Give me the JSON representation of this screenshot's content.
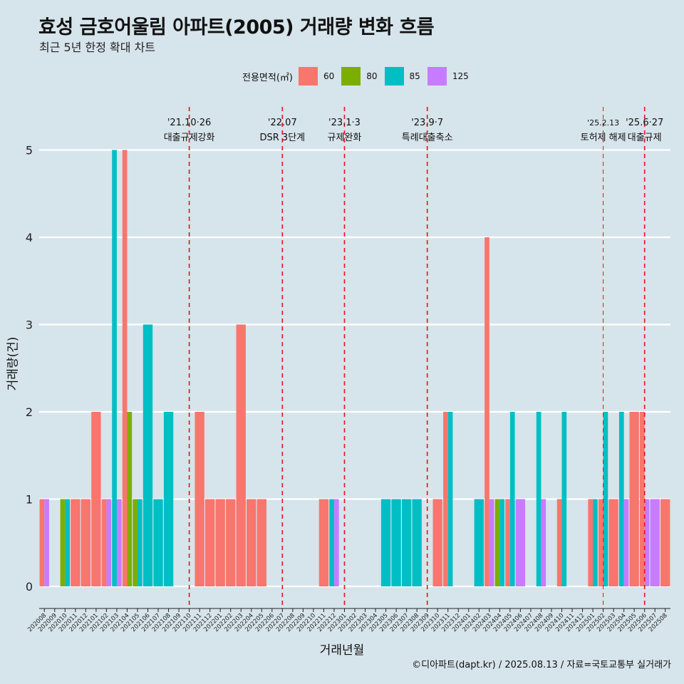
{
  "header": {
    "title": "효성 금호어울림 아파트(2005) 거래량 변화 흐름",
    "subtitle": "최근 5년 한정 확대 차트"
  },
  "legend": {
    "title": "전용면적(㎡)",
    "items": [
      {
        "label": "60",
        "color": "#f8766d"
      },
      {
        "label": "80",
        "color": "#7cae00"
      },
      {
        "label": "85",
        "color": "#00bfc4"
      },
      {
        "label": "125",
        "color": "#c77cff"
      }
    ]
  },
  "caption": "©디아파트(dapt.kr) / 2025.08.13 / 자료=국토교통부 실거래가",
  "chart_data": {
    "type": "bar",
    "title": "효성 금호어울림 아파트(2005) 거래량 변화 흐름",
    "subtitle": "최근 5년 한정 확대 차트",
    "xlabel": "거래년월",
    "ylabel": "거래량(건)",
    "ylim": [
      0,
      5
    ],
    "yticks": [
      0,
      1,
      2,
      3,
      4,
      5
    ],
    "grid": "horizontal",
    "legend_position": "top",
    "categories": [
      "202008",
      "202009",
      "202010",
      "202011",
      "202012",
      "202101",
      "202102",
      "202103",
      "202104",
      "202105",
      "202106",
      "202107",
      "202108",
      "202109",
      "202110",
      "202111",
      "202112",
      "202201",
      "202202",
      "202203",
      "202204",
      "202205",
      "202206",
      "202207",
      "202208",
      "202209",
      "202210",
      "202211",
      "202212",
      "202301",
      "202302",
      "202303",
      "202304",
      "202305",
      "202306",
      "202307",
      "202308",
      "202309",
      "202310",
      "202311",
      "202312",
      "202401",
      "202402",
      "202403",
      "202404",
      "202405",
      "202406",
      "202407",
      "202408",
      "202409",
      "202410",
      "202411",
      "202412",
      "202501",
      "202502",
      "202503",
      "202504",
      "202505",
      "202506",
      "202507",
      "202508"
    ],
    "series": [
      {
        "name": "60",
        "color": "#f8766d",
        "values": [
          1,
          0,
          0,
          1,
          1,
          2,
          1,
          0,
          5,
          0,
          0,
          0,
          0,
          0,
          0,
          2,
          1,
          1,
          1,
          3,
          1,
          1,
          0,
          0,
          0,
          0,
          0,
          1,
          0,
          0,
          0,
          0,
          0,
          0,
          0,
          0,
          0,
          0,
          1,
          2,
          0,
          0,
          0,
          4,
          0,
          1,
          0,
          0,
          0,
          0,
          1,
          0,
          0,
          1,
          1,
          1,
          0,
          2,
          2,
          0,
          1
        ]
      },
      {
        "name": "80",
        "color": "#7cae00",
        "values": [
          0,
          0,
          1,
          0,
          0,
          0,
          0,
          0,
          2,
          1,
          0,
          0,
          0,
          0,
          0,
          0,
          0,
          0,
          0,
          0,
          0,
          0,
          0,
          0,
          0,
          0,
          0,
          0,
          0,
          0,
          0,
          0,
          0,
          0,
          0,
          0,
          0,
          0,
          0,
          0,
          0,
          0,
          0,
          0,
          1,
          0,
          0,
          0,
          0,
          0,
          0,
          0,
          0,
          0,
          0,
          0,
          0,
          0,
          0,
          0,
          0
        ]
      },
      {
        "name": "85",
        "color": "#00bfc4",
        "values": [
          0,
          0,
          1,
          0,
          0,
          0,
          0,
          5,
          0,
          1,
          3,
          1,
          2,
          0,
          0,
          0,
          0,
          0,
          0,
          0,
          0,
          0,
          0,
          0,
          0,
          0,
          0,
          0,
          1,
          0,
          0,
          0,
          0,
          1,
          1,
          1,
          1,
          0,
          0,
          2,
          0,
          0,
          1,
          0,
          1,
          2,
          0,
          0,
          2,
          0,
          2,
          0,
          0,
          1,
          2,
          0,
          2,
          0,
          0,
          0,
          0
        ]
      },
      {
        "name": "125",
        "color": "#c77cff",
        "values": [
          1,
          0,
          0,
          0,
          0,
          0,
          1,
          1,
          0,
          0,
          0,
          0,
          0,
          0,
          0,
          0,
          0,
          0,
          0,
          0,
          0,
          0,
          0,
          0,
          0,
          0,
          0,
          0,
          1,
          0,
          0,
          0,
          0,
          0,
          0,
          0,
          0,
          0,
          0,
          0,
          0,
          0,
          0,
          1,
          0,
          0,
          1,
          0,
          1,
          0,
          0,
          0,
          0,
          0,
          0,
          0,
          1,
          0,
          1,
          1,
          0
        ]
      }
    ],
    "annotations": [
      {
        "x": "202110",
        "date": "'21.10·26",
        "label": "대출규제강화"
      },
      {
        "x": "202207",
        "date": "'22.07",
        "label": "DSR 3단계"
      },
      {
        "x": "202301",
        "date": "'23.1·3",
        "label": "규제완화"
      },
      {
        "x": "202309",
        "date": "'23.9·7",
        "label": "특례대출축소"
      },
      {
        "x": "202502",
        "date": "'25.2.13",
        "label": "토허제 해제"
      },
      {
        "x": "202506",
        "date": "'25.6·27",
        "label": "대출규제"
      }
    ]
  }
}
